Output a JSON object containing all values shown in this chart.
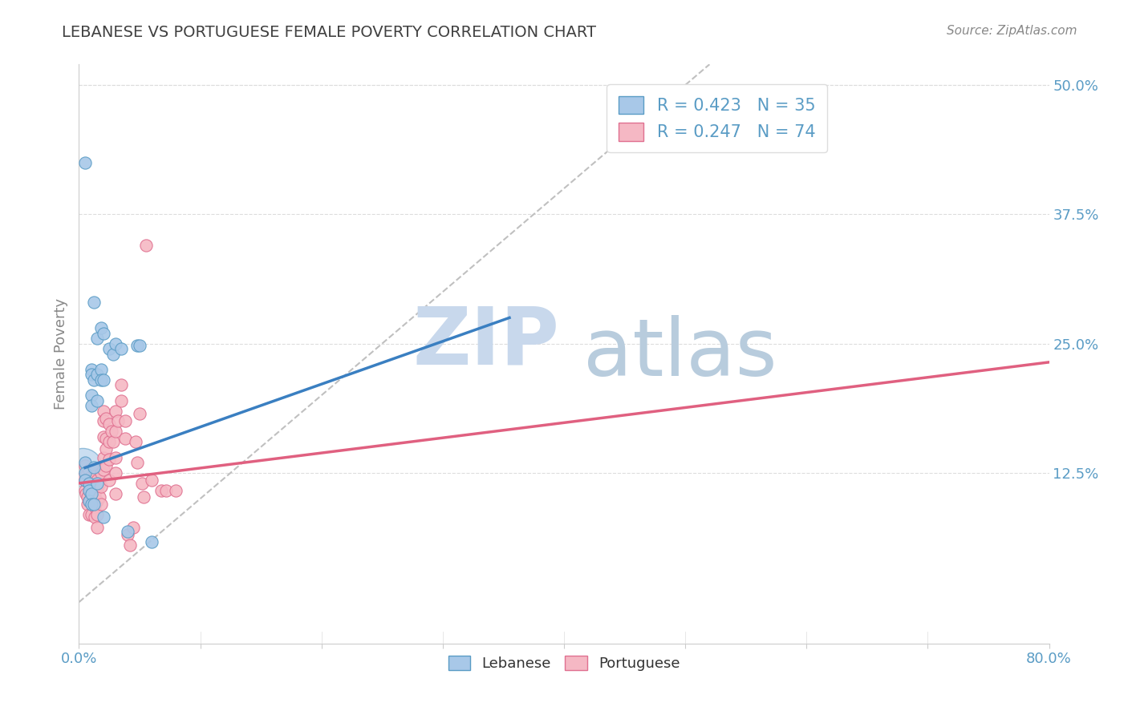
{
  "title": "LEBANESE VS PORTUGUESE FEMALE POVERTY CORRELATION CHART",
  "source": "Source: ZipAtlas.com",
  "ylabel": "Female Poverty",
  "xlim": [
    0.0,
    0.8
  ],
  "ylim": [
    -0.04,
    0.52
  ],
  "yticks_right": [
    0.125,
    0.25,
    0.375,
    0.5
  ],
  "yticklabels_right": [
    "12.5%",
    "25.0%",
    "37.5%",
    "50.0%"
  ],
  "watermark_zip": "ZIP",
  "watermark_atlas": "atlas",
  "legend_line1": "R = 0.423   N = 35",
  "legend_line2": "R = 0.247   N = 74",
  "color_lebanese_fill": "#A8C8E8",
  "color_lebanese_edge": "#5A9CC5",
  "color_portuguese_fill": "#F5B8C4",
  "color_portuguese_edge": "#E07090",
  "color_trend_leb": "#3A7FC1",
  "color_trend_port": "#E06080",
  "color_ref_line": "#C0C0C0",
  "color_grid": "#DDDDDD",
  "title_color": "#404040",
  "source_color": "#888888",
  "tick_color": "#5A9CC5",
  "ylabel_color": "#888888",
  "leb_trend_x0": 0.005,
  "leb_trend_y0": 0.13,
  "leb_trend_x1": 0.355,
  "leb_trend_y1": 0.275,
  "port_trend_x0": 0.0,
  "port_trend_y0": 0.115,
  "port_trend_x1": 0.8,
  "port_trend_y1": 0.232,
  "ref_line_x0": 0.0,
  "ref_line_y0": 0.0,
  "ref_line_x1": 0.52,
  "ref_line_y1": 0.52,
  "leb_points": [
    [
      0.005,
      0.425
    ],
    [
      0.005,
      0.135
    ],
    [
      0.005,
      0.125
    ],
    [
      0.005,
      0.118
    ],
    [
      0.008,
      0.115
    ],
    [
      0.008,
      0.108
    ],
    [
      0.008,
      0.098
    ],
    [
      0.01,
      0.225
    ],
    [
      0.01,
      0.22
    ],
    [
      0.01,
      0.2
    ],
    [
      0.01,
      0.19
    ],
    [
      0.01,
      0.105
    ],
    [
      0.01,
      0.095
    ],
    [
      0.012,
      0.29
    ],
    [
      0.012,
      0.215
    ],
    [
      0.012,
      0.13
    ],
    [
      0.012,
      0.095
    ],
    [
      0.015,
      0.255
    ],
    [
      0.015,
      0.22
    ],
    [
      0.015,
      0.195
    ],
    [
      0.015,
      0.115
    ],
    [
      0.018,
      0.265
    ],
    [
      0.018,
      0.225
    ],
    [
      0.018,
      0.215
    ],
    [
      0.02,
      0.26
    ],
    [
      0.02,
      0.215
    ],
    [
      0.02,
      0.082
    ],
    [
      0.025,
      0.245
    ],
    [
      0.028,
      0.24
    ],
    [
      0.03,
      0.25
    ],
    [
      0.035,
      0.245
    ],
    [
      0.04,
      0.068
    ],
    [
      0.048,
      0.248
    ],
    [
      0.05,
      0.248
    ],
    [
      0.06,
      0.058
    ]
  ],
  "port_points": [
    [
      0.003,
      0.12
    ],
    [
      0.005,
      0.132
    ],
    [
      0.005,
      0.118
    ],
    [
      0.005,
      0.108
    ],
    [
      0.006,
      0.105
    ],
    [
      0.007,
      0.125
    ],
    [
      0.007,
      0.102
    ],
    [
      0.007,
      0.095
    ],
    [
      0.008,
      0.128
    ],
    [
      0.008,
      0.115
    ],
    [
      0.008,
      0.098
    ],
    [
      0.008,
      0.085
    ],
    [
      0.009,
      0.12
    ],
    [
      0.009,
      0.108
    ],
    [
      0.01,
      0.118
    ],
    [
      0.01,
      0.11
    ],
    [
      0.01,
      0.098
    ],
    [
      0.01,
      0.085
    ],
    [
      0.012,
      0.128
    ],
    [
      0.012,
      0.115
    ],
    [
      0.012,
      0.108
    ],
    [
      0.012,
      0.098
    ],
    [
      0.013,
      0.122
    ],
    [
      0.013,
      0.105
    ],
    [
      0.013,
      0.092
    ],
    [
      0.013,
      0.082
    ],
    [
      0.015,
      0.118
    ],
    [
      0.015,
      0.11
    ],
    [
      0.015,
      0.098
    ],
    [
      0.015,
      0.085
    ],
    [
      0.015,
      0.072
    ],
    [
      0.017,
      0.115
    ],
    [
      0.017,
      0.102
    ],
    [
      0.018,
      0.125
    ],
    [
      0.018,
      0.112
    ],
    [
      0.018,
      0.095
    ],
    [
      0.02,
      0.185
    ],
    [
      0.02,
      0.175
    ],
    [
      0.02,
      0.16
    ],
    [
      0.02,
      0.14
    ],
    [
      0.02,
      0.128
    ],
    [
      0.022,
      0.178
    ],
    [
      0.022,
      0.158
    ],
    [
      0.022,
      0.148
    ],
    [
      0.022,
      0.132
    ],
    [
      0.025,
      0.172
    ],
    [
      0.025,
      0.155
    ],
    [
      0.025,
      0.138
    ],
    [
      0.025,
      0.118
    ],
    [
      0.027,
      0.165
    ],
    [
      0.028,
      0.155
    ],
    [
      0.03,
      0.185
    ],
    [
      0.03,
      0.165
    ],
    [
      0.03,
      0.14
    ],
    [
      0.03,
      0.125
    ],
    [
      0.03,
      0.105
    ],
    [
      0.032,
      0.175
    ],
    [
      0.035,
      0.21
    ],
    [
      0.035,
      0.195
    ],
    [
      0.038,
      0.175
    ],
    [
      0.038,
      0.158
    ],
    [
      0.04,
      0.065
    ],
    [
      0.042,
      0.055
    ],
    [
      0.045,
      0.072
    ],
    [
      0.047,
      0.155
    ],
    [
      0.048,
      0.135
    ],
    [
      0.05,
      0.182
    ],
    [
      0.052,
      0.115
    ],
    [
      0.053,
      0.102
    ],
    [
      0.055,
      0.345
    ],
    [
      0.06,
      0.118
    ],
    [
      0.068,
      0.108
    ],
    [
      0.072,
      0.108
    ],
    [
      0.08,
      0.108
    ]
  ]
}
